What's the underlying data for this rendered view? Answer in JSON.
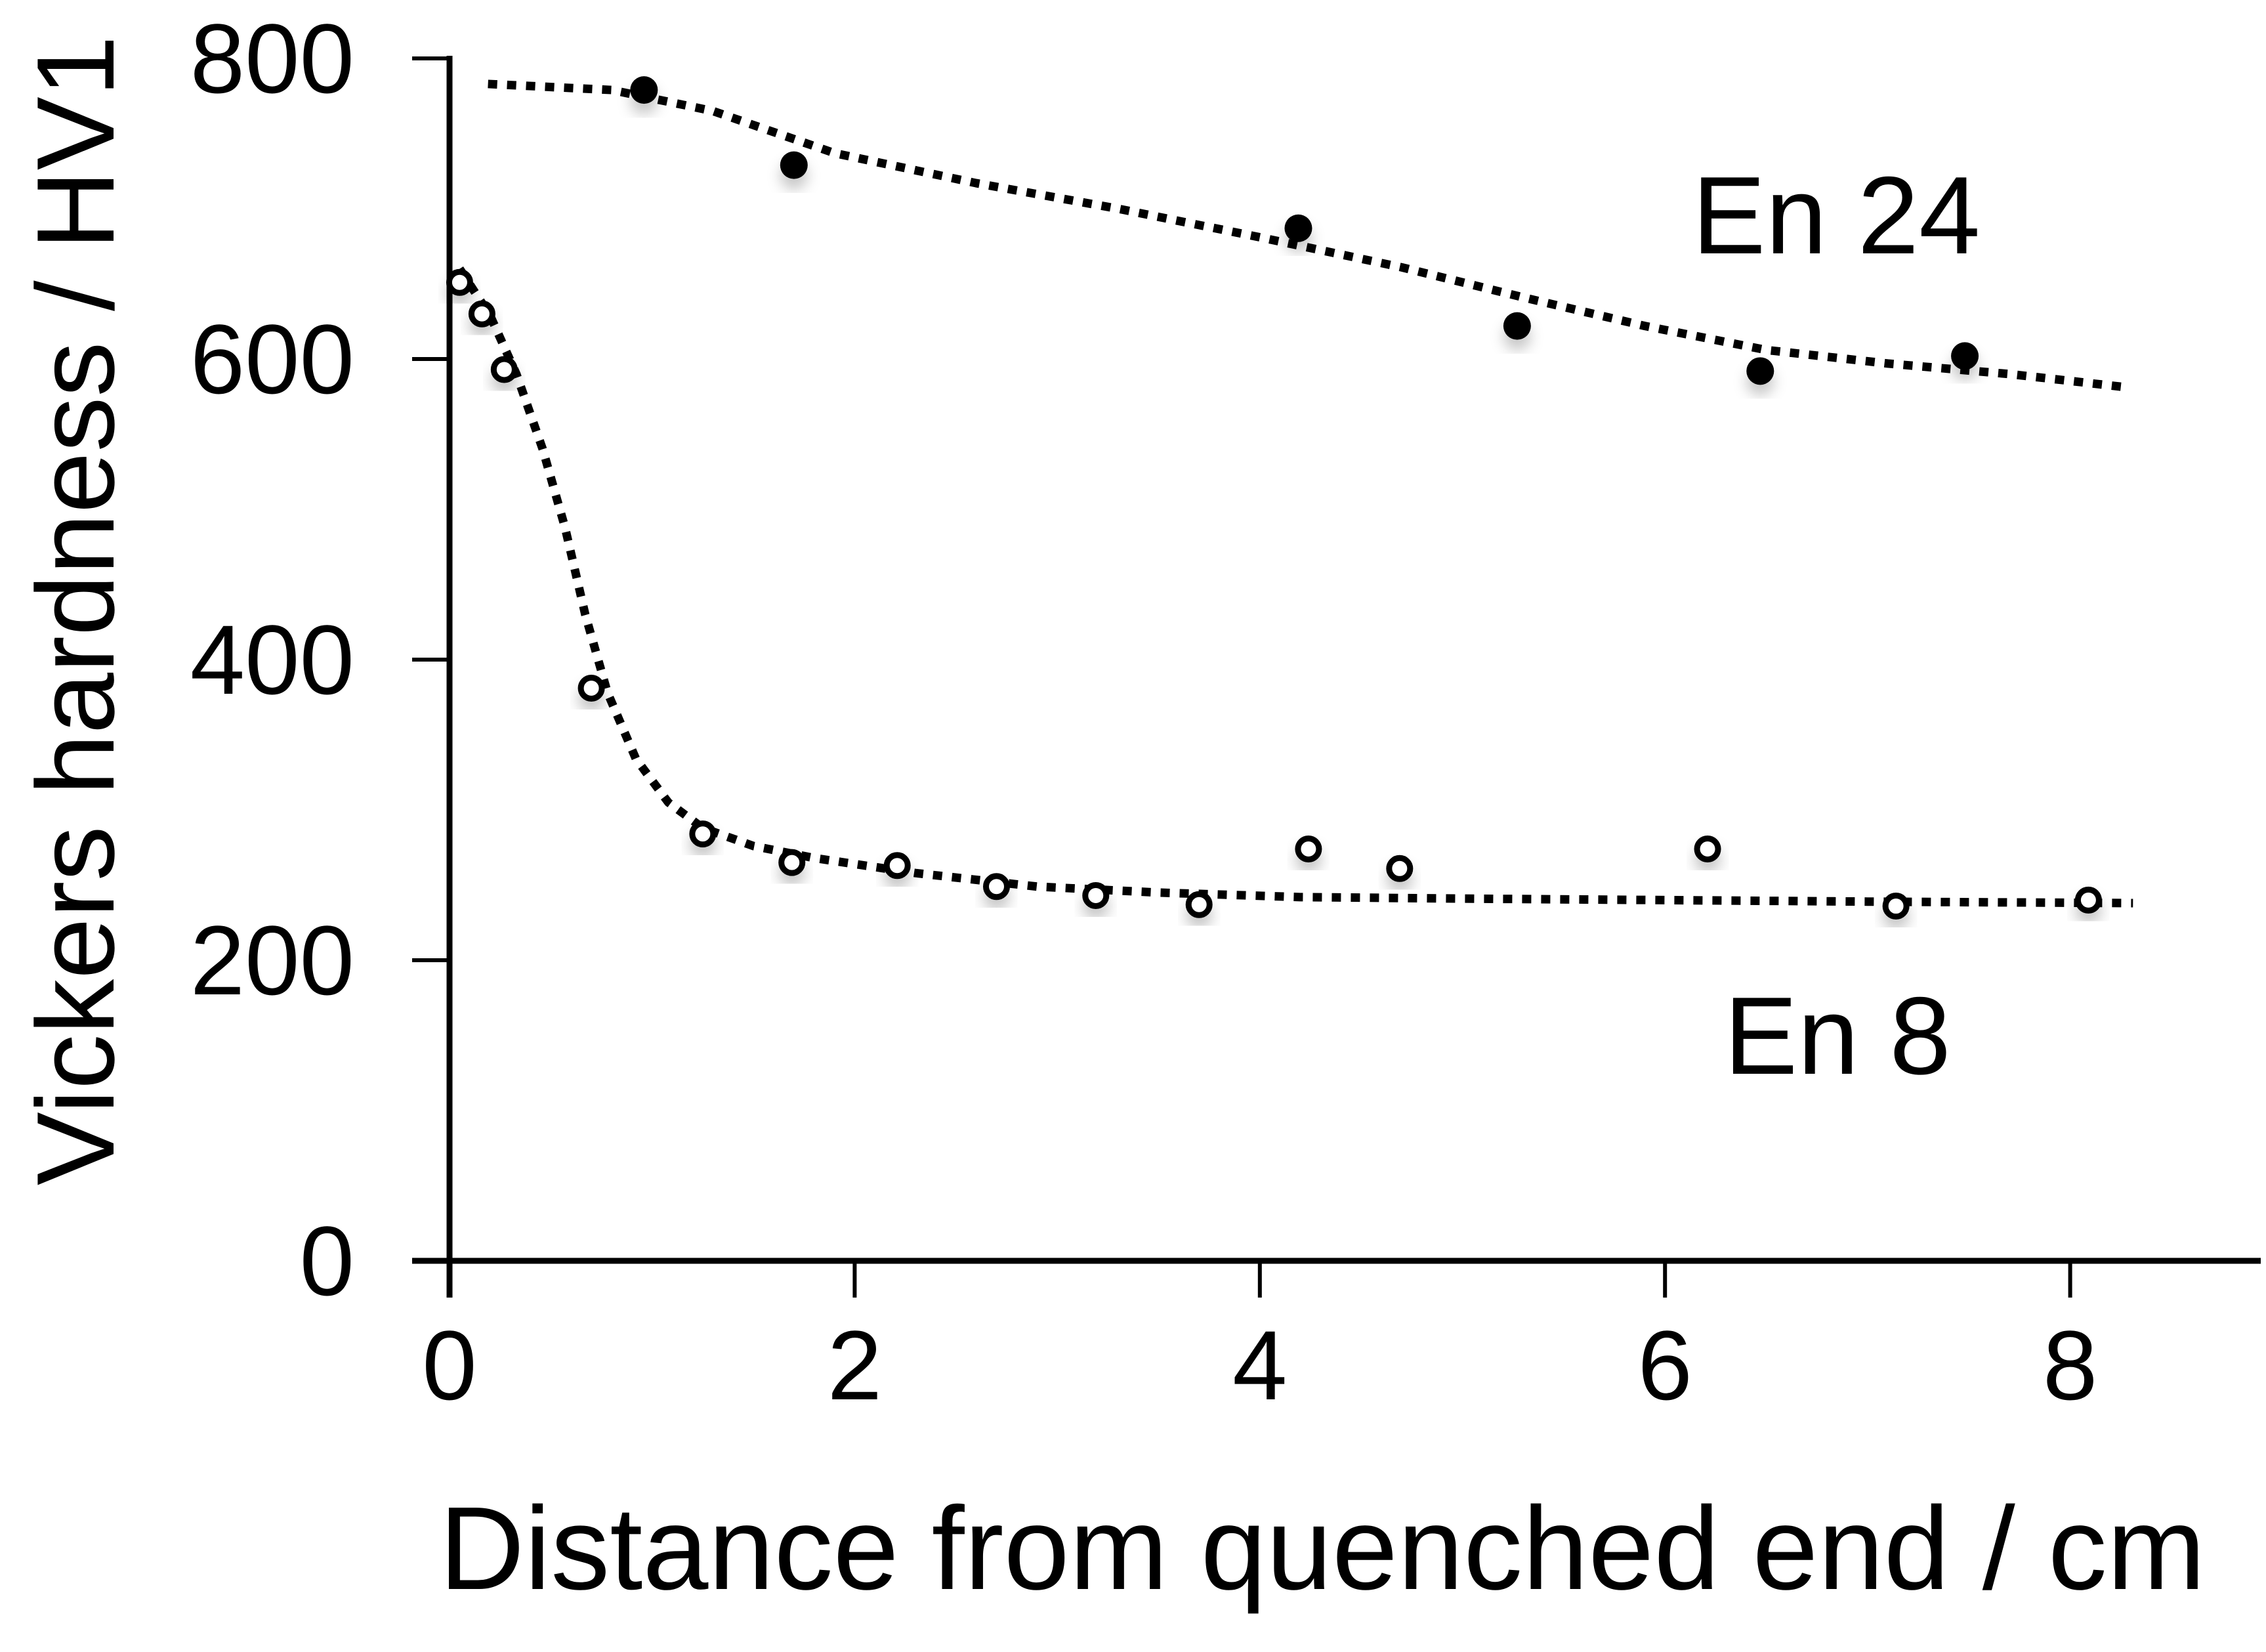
{
  "chart_data": {
    "type": "scatter",
    "title": "",
    "xlabel": "Distance from quenched end / cm",
    "ylabel": "Vickers hardness / HV1",
    "xlim": [
      0,
      8.9
    ],
    "ylim": [
      0,
      800
    ],
    "xticks": [
      0,
      2,
      4,
      6,
      8
    ],
    "yticks": [
      0,
      200,
      400,
      600,
      800
    ],
    "grid": false,
    "legend_position": "inline-annotations",
    "line_style": "dotted",
    "color": "#000000",
    "series": [
      {
        "name": "En 24",
        "marker": "filled-circle",
        "points": [
          [
            0.96,
            779
          ],
          [
            1.7,
            729
          ],
          [
            4.19,
            687
          ],
          [
            5.27,
            622
          ],
          [
            6.47,
            592
          ],
          [
            7.48,
            602
          ]
        ],
        "trend": [
          [
            0.19,
            783
          ],
          [
            0.8,
            779
          ],
          [
            1.3,
            765
          ],
          [
            1.9,
            737
          ],
          [
            2.6,
            717
          ],
          [
            3.3,
            700
          ],
          [
            4.0,
            681
          ],
          [
            4.7,
            661
          ],
          [
            5.3,
            641
          ],
          [
            5.9,
            622
          ],
          [
            6.5,
            606
          ],
          [
            7.1,
            597
          ],
          [
            7.7,
            590
          ],
          [
            8.29,
            581
          ]
        ]
      },
      {
        "name": "En 8",
        "marker": "open-circle",
        "points": [
          [
            0.05,
            651
          ],
          [
            0.16,
            630
          ],
          [
            0.27,
            593
          ],
          [
            0.7,
            381
          ],
          [
            1.25,
            284
          ],
          [
            1.69,
            265
          ],
          [
            2.21,
            263
          ],
          [
            2.7,
            249
          ],
          [
            3.19,
            243
          ],
          [
            3.7,
            237
          ],
          [
            4.24,
            274
          ],
          [
            4.69,
            261
          ],
          [
            6.21,
            274
          ],
          [
            7.14,
            236
          ],
          [
            8.09,
            240
          ]
        ],
        "trend": [
          [
            0.05,
            660
          ],
          [
            0.2,
            629
          ],
          [
            0.33,
            590
          ],
          [
            0.46,
            540
          ],
          [
            0.57,
            488
          ],
          [
            0.67,
            430
          ],
          [
            0.78,
            378
          ],
          [
            0.92,
            334
          ],
          [
            1.08,
            305
          ],
          [
            1.25,
            288
          ],
          [
            1.5,
            276
          ],
          [
            1.8,
            268
          ],
          [
            2.3,
            258
          ],
          [
            2.9,
            249
          ],
          [
            3.5,
            245
          ],
          [
            4.2,
            242
          ],
          [
            5.0,
            241
          ],
          [
            6.0,
            240
          ],
          [
            7.0,
            239
          ],
          [
            8.31,
            238
          ]
        ]
      }
    ]
  }
}
